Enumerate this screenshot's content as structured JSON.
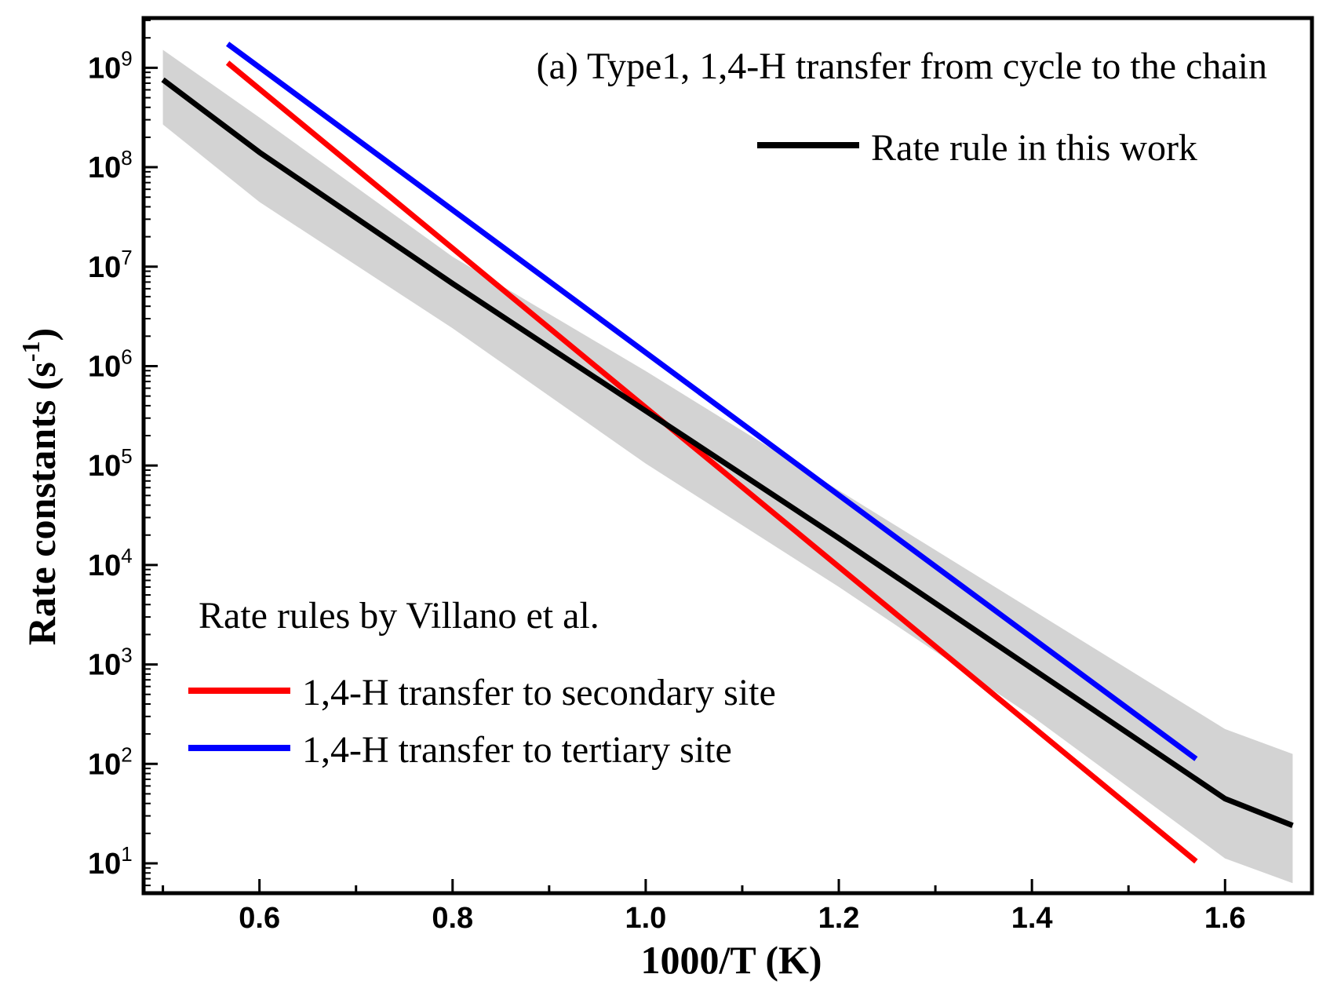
{
  "chart_data": {
    "type": "line",
    "title": "(a) Type1, 1,4-H transfer from cycle to the chain",
    "xlabel": "1000/T (K)",
    "ylabel_main": "Rate constants (s",
    "ylabel_sup": "-1",
    "ylabel_close": ")",
    "xlim": [
      0.48,
      1.69
    ],
    "ylim_log10": [
      0.7,
      9.5
    ],
    "y_scale": "log",
    "x_ticks": [
      0.6,
      0.8,
      1.0,
      1.2,
      1.4,
      1.6
    ],
    "x_tick_labels": [
      "0.6",
      "0.8",
      "1.0",
      "1.2",
      "1.4",
      "1.6"
    ],
    "y_ticks_log10": [
      1,
      2,
      3,
      4,
      5,
      6,
      7,
      8,
      9
    ],
    "y_tick_base": "10",
    "y_tick_exponents": [
      "1",
      "2",
      "3",
      "4",
      "5",
      "6",
      "7",
      "8",
      "9"
    ],
    "legend_groups": {
      "group_title": "Rate rules by Villano et al."
    },
    "series": [
      {
        "name": "Rate rule in this work",
        "color": "#000000",
        "x": [
          0.5,
          0.6,
          0.8,
          1.0,
          1.2,
          1.4,
          1.6,
          1.67
        ],
        "log10_y": [
          8.88,
          8.15,
          6.83,
          5.55,
          4.27,
          2.96,
          1.65,
          1.38
        ]
      },
      {
        "name": "1,4-H transfer to secondary site",
        "color": "#ff0000",
        "x": [
          0.567,
          1.57
        ],
        "log10_y": [
          9.05,
          1.02
        ]
      },
      {
        "name": "1,4-H transfer to tertiary site",
        "color": "#0000ff",
        "x": [
          0.567,
          1.57
        ],
        "log10_y": [
          9.24,
          2.05
        ]
      }
    ],
    "uncertainty_band": {
      "name": "uncertainty",
      "color": "#d3d3d3",
      "x": [
        0.5,
        0.6,
        0.8,
        1.0,
        1.2,
        1.4,
        1.6,
        1.67
      ],
      "log10_upper": [
        9.18,
        8.5,
        7.1,
        5.95,
        4.75,
        3.55,
        2.35,
        2.1
      ],
      "log10_lower": [
        8.43,
        7.65,
        6.38,
        5.02,
        3.78,
        2.48,
        1.05,
        0.8
      ]
    }
  }
}
